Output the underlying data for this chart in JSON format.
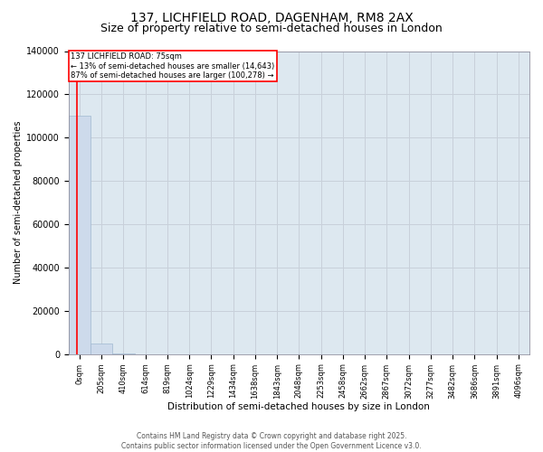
{
  "title_line1": "137, LICHFIELD ROAD, DAGENHAM, RM8 2AX",
  "title_line2": "Size of property relative to semi-detached houses in London",
  "xlabel": "Distribution of semi-detached houses by size in London",
  "ylabel": "Number of semi-detached properties",
  "annotation_title": "137 LICHFIELD ROAD: 75sqm",
  "annotation_line2": "← 13% of semi-detached houses are smaller (14,643)",
  "annotation_line3": "87% of semi-detached houses are larger (100,278) →",
  "footer_line1": "Contains HM Land Registry data © Crown copyright and database right 2025.",
  "footer_line2": "Contains public sector information licensed under the Open Government Licence v3.0.",
  "bin_labels": [
    "0sqm",
    "205sqm",
    "410sqm",
    "614sqm",
    "819sqm",
    "1024sqm",
    "1229sqm",
    "1434sqm",
    "1638sqm",
    "1843sqm",
    "2048sqm",
    "2253sqm",
    "2458sqm",
    "2662sqm",
    "2867sqm",
    "3072sqm",
    "3277sqm",
    "3482sqm",
    "3686sqm",
    "3891sqm",
    "4096sqm"
  ],
  "bar_values": [
    110000,
    5000,
    200,
    50,
    20,
    10,
    5,
    3,
    2,
    1,
    1,
    0,
    0,
    0,
    0,
    0,
    0,
    0,
    0,
    0,
    0
  ],
  "bar_color": "#cddaeb",
  "bar_edge_color": "#a0b8d0",
  "ylim": [
    0,
    140000
  ],
  "yticks": [
    0,
    20000,
    40000,
    60000,
    80000,
    100000,
    120000,
    140000
  ],
  "grid_color": "#c8d0da",
  "bg_color": "#dde8f0",
  "title_fontsize": 10,
  "subtitle_fontsize": 9
}
